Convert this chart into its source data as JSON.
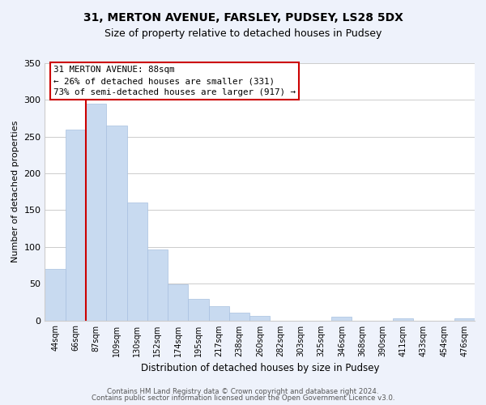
{
  "title1": "31, MERTON AVENUE, FARSLEY, PUDSEY, LS28 5DX",
  "title2": "Size of property relative to detached houses in Pudsey",
  "xlabel": "Distribution of detached houses by size in Pudsey",
  "ylabel": "Number of detached properties",
  "bar_labels": [
    "44sqm",
    "66sqm",
    "87sqm",
    "109sqm",
    "130sqm",
    "152sqm",
    "174sqm",
    "195sqm",
    "217sqm",
    "238sqm",
    "260sqm",
    "282sqm",
    "303sqm",
    "325sqm",
    "346sqm",
    "368sqm",
    "390sqm",
    "411sqm",
    "433sqm",
    "454sqm",
    "476sqm"
  ],
  "bar_heights": [
    70,
    260,
    295,
    265,
    160,
    97,
    49,
    29,
    19,
    10,
    6,
    0,
    0,
    0,
    5,
    0,
    0,
    3,
    0,
    0,
    3
  ],
  "bar_color": "#c8daf0",
  "bar_edge_color": "#a8c0e0",
  "vline_index": 2,
  "vline_color": "#cc0000",
  "annotation_line1": "31 MERTON AVENUE: 88sqm",
  "annotation_line2": "← 26% of detached houses are smaller (331)",
  "annotation_line3": "73% of semi-detached houses are larger (917) →",
  "ylim": [
    0,
    350
  ],
  "yticks": [
    0,
    50,
    100,
    150,
    200,
    250,
    300,
    350
  ],
  "footer1": "Contains HM Land Registry data © Crown copyright and database right 2024.",
  "footer2": "Contains public sector information licensed under the Open Government Licence v3.0.",
  "bg_color": "#eef2fb",
  "plot_bg_color": "#ffffff",
  "grid_color": "#cccccc",
  "title1_fontsize": 10,
  "title2_fontsize": 9
}
